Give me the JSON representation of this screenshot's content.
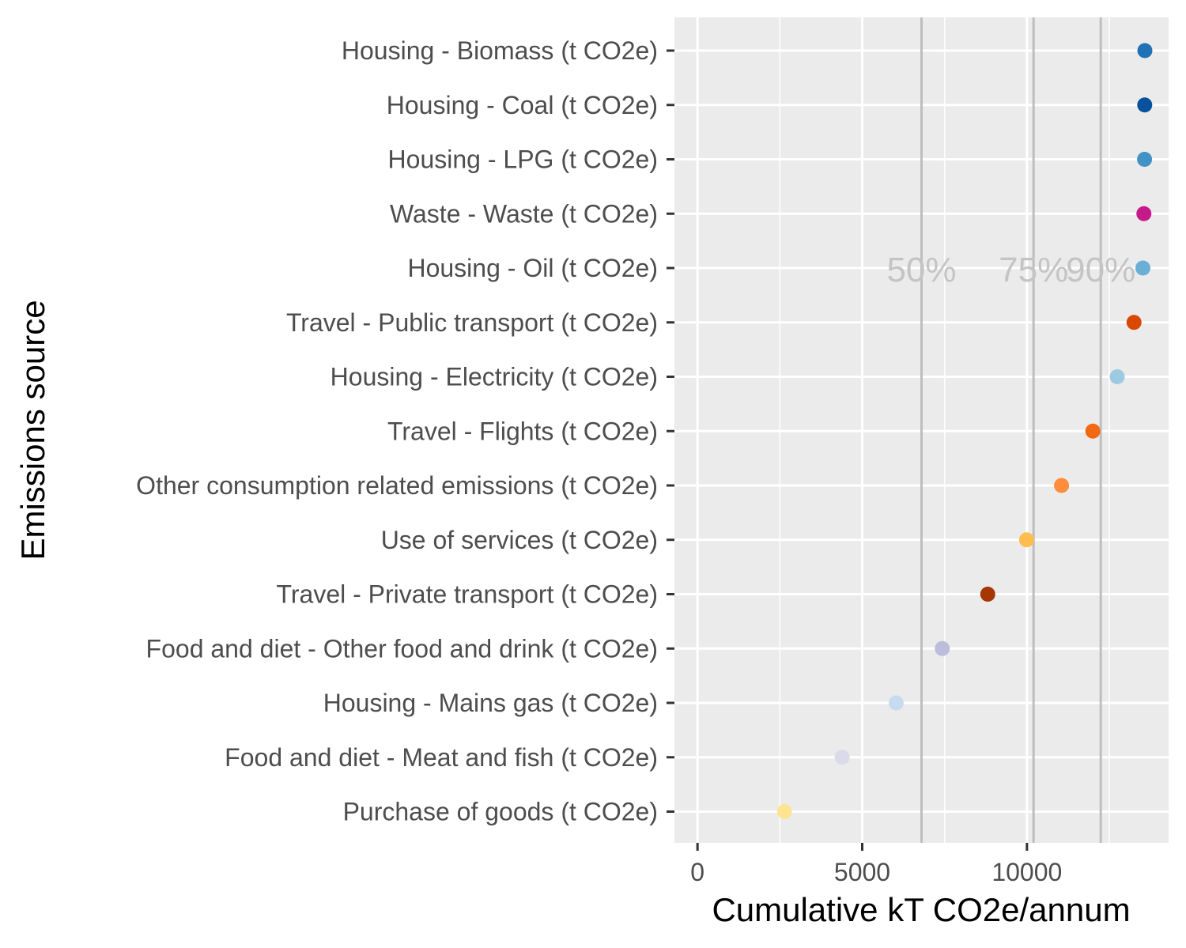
{
  "chart_data": {
    "type": "scatter",
    "orientation": "horizontal-dot",
    "xlabel": "Cumulative kT CO2e/annum",
    "ylabel": "Emissions source",
    "xlim": [
      -700,
      14300
    ],
    "xticks": [
      0,
      5000,
      10000
    ],
    "x_tick_labels": [
      "0",
      "5000",
      "10000"
    ],
    "grid": true,
    "legend": "none",
    "background": "#ebebeb",
    "categories": [
      "Housing - Biomass (t CO2e)",
      "Housing - Coal (t CO2e)",
      "Housing - LPG (t CO2e)",
      "Waste - Waste (t CO2e)",
      "Housing - Oil (t CO2e)",
      "Travel - Public transport (t CO2e)",
      "Housing - Electricity (t CO2e)",
      "Travel - Flights (t CO2e)",
      "Other consumption related emissions (t CO2e)",
      "Use of services (t CO2e)",
      "Travel - Private transport (t CO2e)",
      "Food and diet - Other food and drink (t CO2e)",
      "Housing - Mains gas (t CO2e)",
      "Food and diet - Meat and fish (t CO2e)",
      "Purchase of goods (t CO2e)"
    ],
    "values": [
      13580,
      13575,
      13570,
      13550,
      13520,
      13250,
      12740,
      12000,
      11050,
      9990,
      8810,
      7430,
      6030,
      4390,
      2640
    ],
    "colors": [
      "#2171b5",
      "#08519c",
      "#4292c6",
      "#c51b8a",
      "#6baed6",
      "#d94801",
      "#9ecae1",
      "#f16913",
      "#fd8d3c",
      "#fdbe4f",
      "#a63603",
      "#bcbddc",
      "#c6dbef",
      "#dadaeb",
      "#fee391"
    ],
    "reference_lines": [
      {
        "label": "50%",
        "x": 6800
      },
      {
        "label": "75%",
        "x": 10200
      },
      {
        "label": "90%",
        "x": 12240
      }
    ]
  }
}
